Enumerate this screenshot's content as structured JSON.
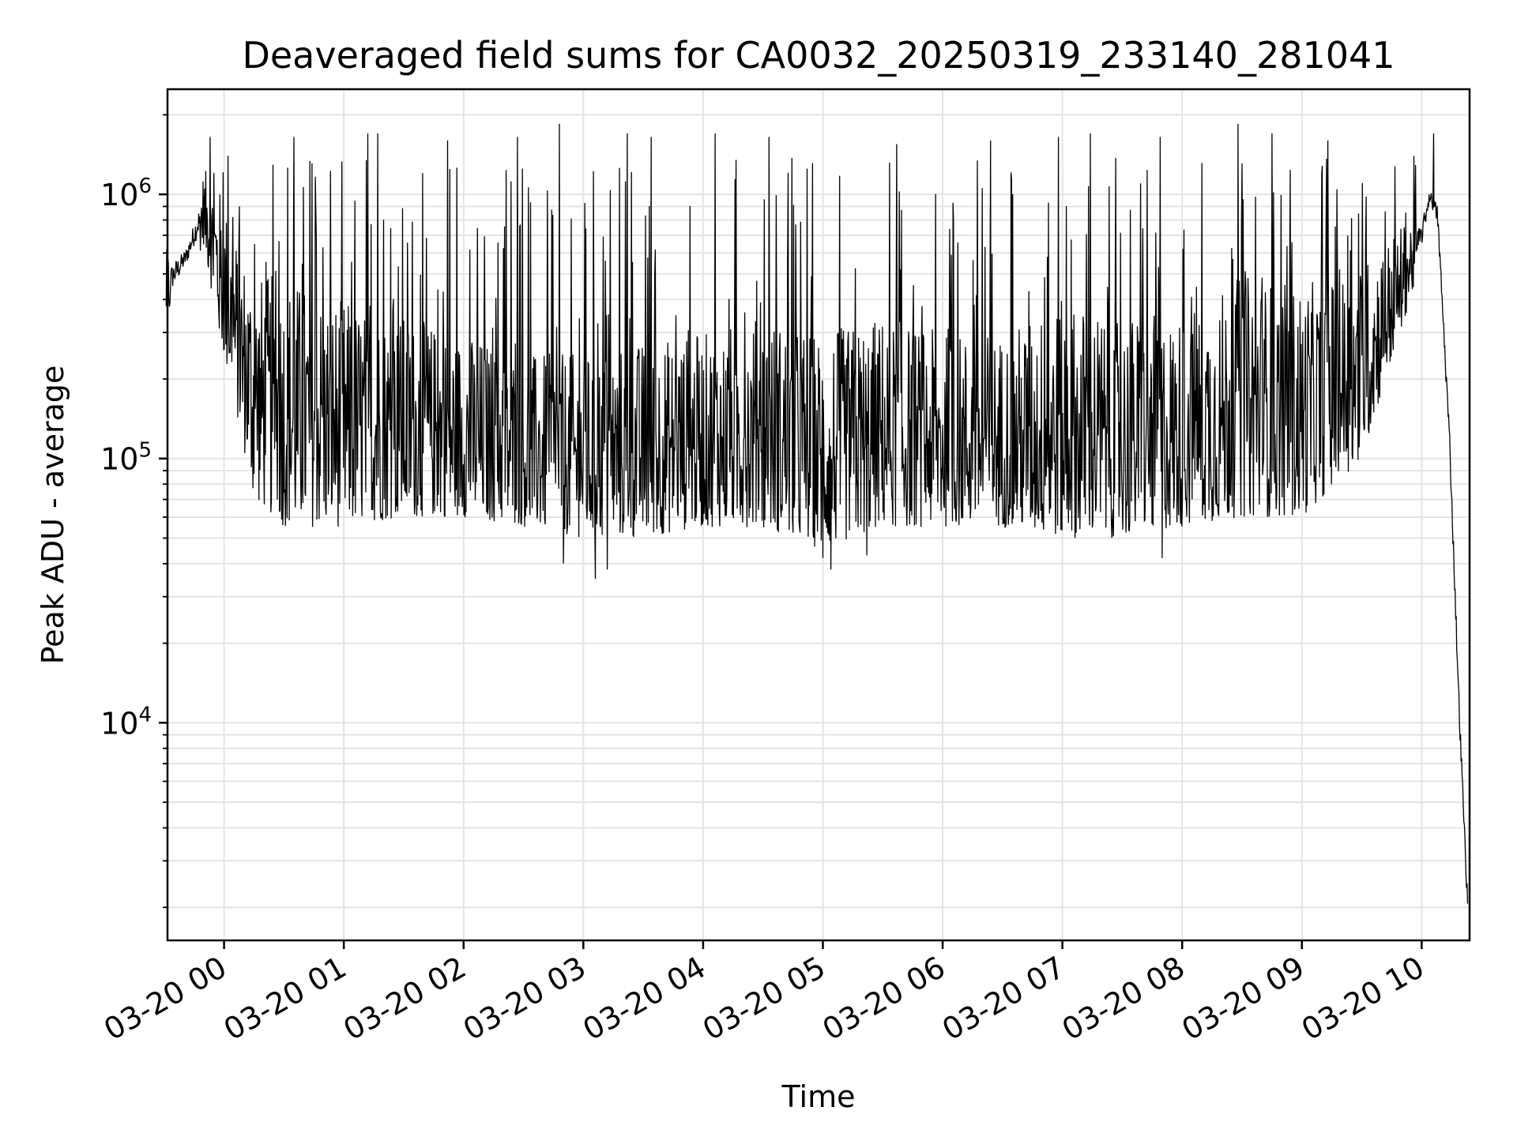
{
  "chart_data": {
    "type": "line",
    "title": "Deaveraged field sums for CA0032_20250319_233140_281041",
    "xlabel": "Time",
    "ylabel": "Peak ADU - average",
    "yscale": "log",
    "grid": true,
    "xlim": [
      "2025-03-19 23:31:40",
      "2025-03-20 10:24:00"
    ],
    "ylim": [
      1500,
      2500000
    ],
    "x_ticks": [
      {
        "value": "2025-03-20 00:00",
        "label": "03-20 00"
      },
      {
        "value": "2025-03-20 01:00",
        "label": "03-20 01"
      },
      {
        "value": "2025-03-20 02:00",
        "label": "03-20 02"
      },
      {
        "value": "2025-03-20 03:00",
        "label": "03-20 03"
      },
      {
        "value": "2025-03-20 04:00",
        "label": "03-20 04"
      },
      {
        "value": "2025-03-20 05:00",
        "label": "03-20 05"
      },
      {
        "value": "2025-03-20 06:00",
        "label": "03-20 06"
      },
      {
        "value": "2025-03-20 07:00",
        "label": "03-20 07"
      },
      {
        "value": "2025-03-20 08:00",
        "label": "03-20 08"
      },
      {
        "value": "2025-03-20 09:00",
        "label": "03-20 09"
      },
      {
        "value": "2025-03-20 10:00",
        "label": "03-20 10"
      }
    ],
    "y_ticks": [
      {
        "value": 10000,
        "base": "10",
        "exp": "4"
      },
      {
        "value": 100000,
        "base": "10",
        "exp": "5"
      },
      {
        "value": 1000000,
        "base": "10",
        "exp": "6"
      }
    ],
    "series": [
      {
        "color": "#000000",
        "envelope": [
          {
            "t": "2025-03-19 23:31",
            "low": 330000,
            "high": 620000
          },
          {
            "t": "2025-03-19 23:41",
            "low": 480000,
            "high": 700000
          },
          {
            "t": "2025-03-19 23:50",
            "low": 650000,
            "high": 1250000
          },
          {
            "t": "2025-03-19 23:57",
            "low": 300000,
            "high": 1100000
          },
          {
            "t": "2025-03-20 00:06",
            "low": 150000,
            "high": 700000
          },
          {
            "t": "2025-03-20 00:15",
            "low": 70000,
            "high": 500000
          },
          {
            "t": "2025-03-20 00:30",
            "low": 55000,
            "high": 500000
          },
          {
            "t": "2025-03-20 01:00",
            "low": 55000,
            "high": 400000
          },
          {
            "t": "2025-03-20 01:30",
            "low": 60000,
            "high": 350000
          },
          {
            "t": "2025-03-20 02:00",
            "low": 60000,
            "high": 300000
          },
          {
            "t": "2025-03-20 02:30",
            "low": 55000,
            "high": 250000
          },
          {
            "t": "2025-03-20 03:00",
            "low": 50000,
            "high": 250000
          },
          {
            "t": "2025-03-20 03:30",
            "low": 50000,
            "high": 280000
          },
          {
            "t": "2025-03-20 04:00",
            "low": 55000,
            "high": 300000
          },
          {
            "t": "2025-03-20 04:30",
            "low": 55000,
            "high": 350000
          },
          {
            "t": "2025-03-20 05:00",
            "low": 45000,
            "high": 300000
          },
          {
            "t": "2025-03-20 05:30",
            "low": 55000,
            "high": 350000
          },
          {
            "t": "2025-03-20 06:00",
            "low": 55000,
            "high": 300000
          },
          {
            "t": "2025-03-20 06:30",
            "low": 55000,
            "high": 300000
          },
          {
            "t": "2025-03-20 07:00",
            "low": 50000,
            "high": 400000
          },
          {
            "t": "2025-03-20 07:30",
            "low": 50000,
            "high": 350000
          },
          {
            "t": "2025-03-20 08:00",
            "low": 55000,
            "high": 350000
          },
          {
            "t": "2025-03-20 08:30",
            "low": 60000,
            "high": 500000
          },
          {
            "t": "2025-03-20 09:00",
            "low": 60000,
            "high": 450000
          },
          {
            "t": "2025-03-20 09:30",
            "low": 100000,
            "high": 550000
          },
          {
            "t": "2025-03-20 10:00",
            "low": 550000,
            "high": 900000
          },
          {
            "t": "2025-03-20 10:04",
            "low": 850000,
            "high": 1150000
          },
          {
            "t": "2025-03-20 10:08",
            "low": 650000,
            "high": 1050000
          },
          {
            "t": "2025-03-20 10:14",
            "low": 90000,
            "high": 150000
          },
          {
            "t": "2025-03-20 10:19",
            "low": 8000,
            "high": 13000
          },
          {
            "t": "2025-03-20 10:23",
            "low": 1700,
            "high": 2500
          }
        ],
        "spikes": [
          {
            "t": "2025-03-19 23:53",
            "value": 1650000
          },
          {
            "t": "2025-03-20 00:02",
            "value": 1400000
          },
          {
            "t": "2025-03-20 00:35",
            "value": 1650000
          },
          {
            "t": "2025-03-20 01:12",
            "value": 1700000
          },
          {
            "t": "2025-03-20 01:17",
            "value": 1700000
          },
          {
            "t": "2025-03-20 01:52",
            "value": 1600000
          },
          {
            "t": "2025-03-20 02:27",
            "value": 1650000
          },
          {
            "t": "2025-03-20 02:48",
            "value": 1850000
          },
          {
            "t": "2025-03-20 03:22",
            "value": 1700000
          },
          {
            "t": "2025-03-20 03:34",
            "value": 1650000
          },
          {
            "t": "2025-03-20 04:06",
            "value": 1700000
          },
          {
            "t": "2025-03-20 04:33",
            "value": 1650000
          },
          {
            "t": "2025-03-20 05:37",
            "value": 1550000
          },
          {
            "t": "2025-03-20 06:24",
            "value": 1600000
          },
          {
            "t": "2025-03-20 06:58",
            "value": 1650000
          },
          {
            "t": "2025-03-20 07:14",
            "value": 1700000
          },
          {
            "t": "2025-03-20 07:49",
            "value": 1650000
          },
          {
            "t": "2025-03-20 08:28",
            "value": 1850000
          },
          {
            "t": "2025-03-20 08:45",
            "value": 1700000
          },
          {
            "t": "2025-03-20 09:13",
            "value": 1600000
          },
          {
            "t": "2025-03-20 10:06",
            "value": 1700000
          }
        ],
        "dips": [
          {
            "t": "2025-03-20 02:50",
            "value": 40000
          },
          {
            "t": "2025-03-20 03:06",
            "value": 35000
          },
          {
            "t": "2025-03-20 03:12",
            "value": 38000
          },
          {
            "t": "2025-03-20 05:00",
            "value": 42000
          },
          {
            "t": "2025-03-20 05:04",
            "value": 38000
          },
          {
            "t": "2025-03-20 05:22",
            "value": 43000
          },
          {
            "t": "2025-03-20 07:50",
            "value": 42000
          }
        ]
      }
    ]
  }
}
